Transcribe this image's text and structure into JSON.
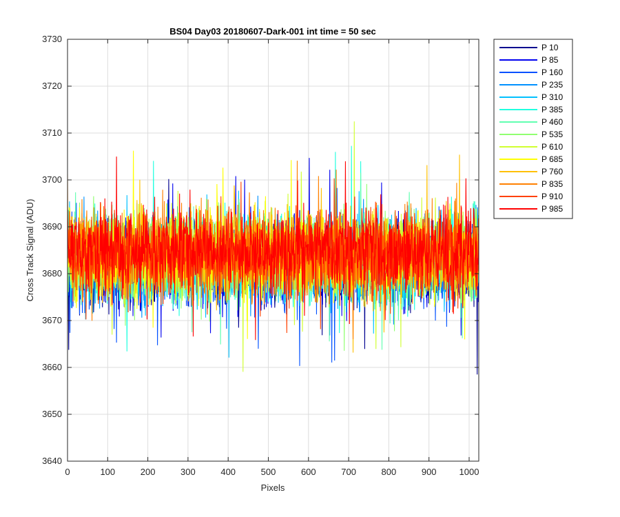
{
  "chart_data": {
    "type": "line",
    "title": "BS04 Day03 20180607-Dark-001 int time = 50 sec",
    "xlabel": "Pixels",
    "ylabel": "Cross Track Signal (ADU)",
    "xlim": [
      0,
      1024
    ],
    "ylim": [
      3640,
      3730
    ],
    "xticks": [
      0,
      100,
      200,
      300,
      400,
      500,
      600,
      700,
      800,
      900,
      1000
    ],
    "yticks": [
      3640,
      3650,
      3660,
      3670,
      3680,
      3690,
      3700,
      3710,
      3720,
      3730
    ],
    "grid": true,
    "legend_position": "outside-top-right",
    "series": [
      {
        "name": "P 10",
        "color": "#00008F",
        "mean": 3682,
        "values_note": ""
      },
      {
        "name": "P 85",
        "color": "#0000EF",
        "mean": 3682
      },
      {
        "name": "P 160",
        "color": "#0050FF",
        "mean": 3682
      },
      {
        "name": "P 235",
        "color": "#0090FF",
        "mean": 3683
      },
      {
        "name": "P 310",
        "color": "#00C0FF",
        "mean": 3683
      },
      {
        "name": "P 385",
        "color": "#20FFDF",
        "mean": 3683
      },
      {
        "name": "P 460",
        "color": "#60FFB0",
        "mean": 3683
      },
      {
        "name": "P 535",
        "color": "#90FF70",
        "mean": 3684
      },
      {
        "name": "P 610",
        "color": "#D0FF30",
        "mean": 3684
      },
      {
        "name": "P 685",
        "color": "#FFFF00",
        "mean": 3684
      },
      {
        "name": "P 760",
        "color": "#FFC000",
        "mean": 3684
      },
      {
        "name": "P 835",
        "color": "#FF8000",
        "mean": 3684
      },
      {
        "name": "P 910",
        "color": "#FF4000",
        "mean": 3684
      },
      {
        "name": "P 985",
        "color": "#FF0000",
        "mean": 3685
      }
    ],
    "noise_amplitude_adu": 8,
    "num_pixels": 1024
  }
}
